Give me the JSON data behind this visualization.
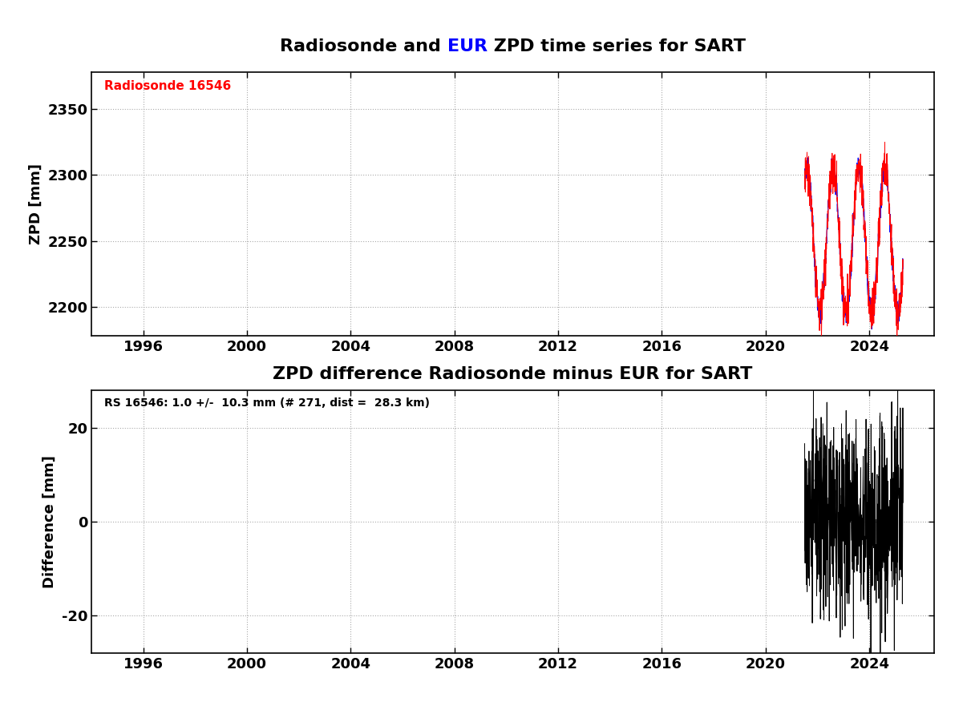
{
  "title1_part1": "Radiosonde and ",
  "title1_part2": "EUR",
  "title1_part3": " ZPD time series for SART",
  "title2": "ZPD difference Radiosonde minus EUR for SART",
  "ylabel1": "ZPD [mm]",
  "ylabel2": "Difference [mm]",
  "legend_label": "Radiosonde 16546",
  "stats_label": "RS 16546: 1.0 +/-  10.3 mm (# 271, dist =  28.3 km)",
  "xmin": 1994,
  "xmax": 2026.5,
  "xticks": [
    1996,
    2000,
    2004,
    2008,
    2012,
    2016,
    2020,
    2024
  ],
  "ylim1": [
    2178,
    2378
  ],
  "yticks1": [
    2200,
    2250,
    2300,
    2350
  ],
  "ylim2": [
    -28,
    28
  ],
  "yticks2": [
    -20,
    0,
    20
  ],
  "background_color": "white",
  "grid_color": "#aaaaaa",
  "rs_color": "#ff0000",
  "epn_color": "#0000ff",
  "diff_color": "#000000",
  "data_start_year": 2021.5,
  "data_end_year": 2025.3
}
